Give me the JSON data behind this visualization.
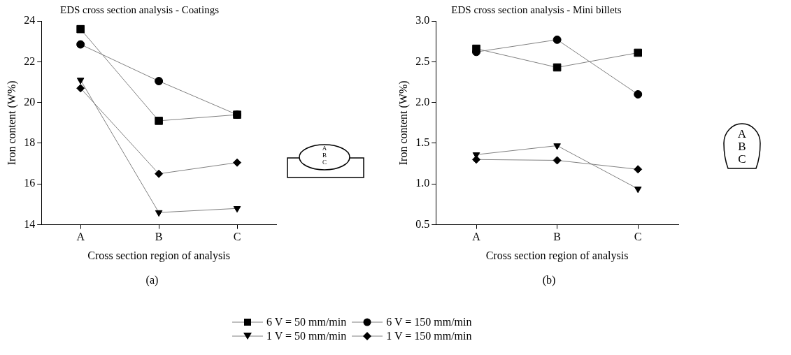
{
  "chart_data": [
    {
      "type": "line",
      "title": "EDS cross section analysis - Coatings",
      "xlabel": "Cross section region of analysis",
      "ylabel": "Iron content (W%)",
      "categories": [
        "A",
        "B",
        "C"
      ],
      "ylim": [
        14,
        24
      ],
      "yticks": [
        14,
        16,
        18,
        20,
        22,
        24
      ],
      "grid": false,
      "legend": "bottom",
      "annotations": [
        "(a)",
        "A",
        "B",
        "C"
      ],
      "series": [
        {
          "name": "6 V = 50 mm/min",
          "color": "#000000",
          "marker": "square",
          "values": [
            23.6,
            19.1,
            19.4
          ]
        },
        {
          "name": "6 V = 150 mm/min",
          "color": "#000000",
          "marker": "circle",
          "values": [
            22.85,
            21.05,
            19.4
          ]
        },
        {
          "name": "1 V = 50 mm/min",
          "color": "#000000",
          "marker": "triangle",
          "values": [
            21.1,
            14.6,
            14.8
          ]
        },
        {
          "name": "1 V = 150 mm/min",
          "color": "#000000",
          "marker": "diamond",
          "values": [
            20.7,
            16.5,
            17.05
          ]
        }
      ]
    },
    {
      "type": "line",
      "title": "EDS cross section analysis - Mini billets",
      "xlabel": "Cross section region of analysis",
      "ylabel": "Iron content (W%)",
      "categories": [
        "A",
        "B",
        "C"
      ],
      "ylim": [
        0.5,
        3.0
      ],
      "yticks": [
        {
          "value": 0.5,
          "label": "0.5"
        },
        {
          "value": 1.0,
          "label": "1.0"
        },
        {
          "value": 1.5,
          "label": "1.5"
        },
        {
          "value": 2.0,
          "label": "2.0"
        },
        {
          "value": 2.5,
          "label": "2.5"
        },
        {
          "value": 3.0,
          "label": "3.0"
        }
      ],
      "grid": false,
      "legend": false,
      "annotations": [
        "(b)",
        "A",
        "B",
        "C"
      ],
      "series": [
        {
          "color": "#000000",
          "marker": "square",
          "values": [
            2.66,
            2.43,
            2.61
          ]
        },
        {
          "color": "#000000",
          "marker": "circle",
          "values": [
            2.62,
            2.77,
            2.1
          ]
        },
        {
          "color": "#000000",
          "marker": "triangle",
          "values": [
            1.36,
            1.47,
            0.94
          ]
        },
        {
          "color": "#000000",
          "marker": "diamond",
          "values": [
            1.3,
            1.29,
            1.18
          ]
        }
      ]
    }
  ]
}
